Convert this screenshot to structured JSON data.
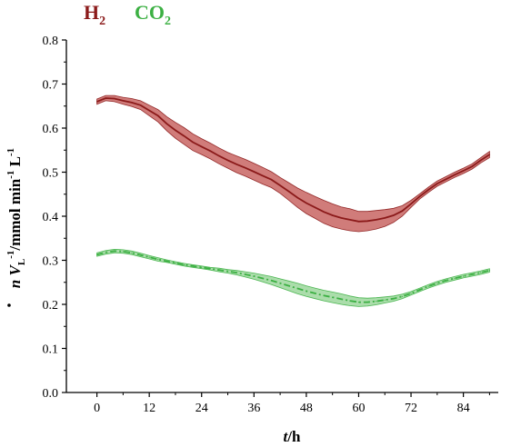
{
  "chart_data": {
    "type": "line",
    "xlabel": {
      "italic": "t",
      "rest": "/h"
    },
    "ylabel": {
      "n": "n",
      "V": "V",
      "sub": "L",
      "sup1": "-1",
      "unit": "/mmol min",
      "sup2": "-1",
      "L": " L",
      "sup3": "-1"
    },
    "xlim": [
      -7,
      92
    ],
    "ylim": [
      0,
      0.8
    ],
    "x_ticks": [
      0,
      12,
      24,
      36,
      48,
      60,
      72,
      84
    ],
    "x_tick_labels": [
      "0",
      "12",
      "24",
      "36",
      "48",
      "60",
      "72",
      "84"
    ],
    "y_ticks": [
      0,
      0.1,
      0.2,
      0.3,
      0.4,
      0.5,
      0.6,
      0.7,
      0.8
    ],
    "y_tick_labels": [
      "0.0",
      "0.1",
      "0.2",
      "0.3",
      "0.4",
      "0.5",
      "0.6",
      "0.7",
      "0.8"
    ],
    "legend": [
      {
        "name": "H",
        "sub": "2",
        "color": "#8b1a1a"
      },
      {
        "name": "CO",
        "sub": "2",
        "color": "#3cb043"
      }
    ],
    "series": [
      {
        "name": "H2",
        "color": "#8b1a1a",
        "band_color": "#c0504d",
        "style": "solid",
        "x": [
          0,
          2,
          4,
          6,
          8,
          10,
          12,
          14,
          16,
          18,
          20,
          22,
          24,
          26,
          28,
          30,
          32,
          34,
          36,
          38,
          40,
          42,
          44,
          46,
          48,
          50,
          52,
          54,
          56,
          58,
          60,
          62,
          64,
          66,
          68,
          70,
          72,
          74,
          76,
          78,
          80,
          82,
          84,
          86,
          88,
          90
        ],
        "y": [
          0.66,
          0.668,
          0.667,
          0.662,
          0.658,
          0.652,
          0.64,
          0.628,
          0.61,
          0.595,
          0.582,
          0.568,
          0.558,
          0.548,
          0.537,
          0.527,
          0.518,
          0.51,
          0.501,
          0.492,
          0.483,
          0.47,
          0.456,
          0.442,
          0.43,
          0.42,
          0.41,
          0.402,
          0.396,
          0.392,
          0.388,
          0.389,
          0.392,
          0.396,
          0.402,
          0.412,
          0.428,
          0.445,
          0.46,
          0.474,
          0.484,
          0.494,
          0.503,
          0.513,
          0.527,
          0.54
        ],
        "err": [
          0.006,
          0.006,
          0.007,
          0.008,
          0.009,
          0.01,
          0.012,
          0.014,
          0.016,
          0.018,
          0.019,
          0.019,
          0.018,
          0.018,
          0.018,
          0.018,
          0.019,
          0.019,
          0.019,
          0.019,
          0.018,
          0.018,
          0.02,
          0.022,
          0.024,
          0.025,
          0.026,
          0.026,
          0.025,
          0.025,
          0.023,
          0.022,
          0.021,
          0.019,
          0.016,
          0.012,
          0.008,
          0.006,
          0.006,
          0.006,
          0.006,
          0.006,
          0.006,
          0.006,
          0.006,
          0.007
        ]
      },
      {
        "name": "CO2",
        "color": "#3cb043",
        "band_color": "#8fd18f",
        "style": "dashdot",
        "x": [
          0,
          2,
          4,
          6,
          8,
          10,
          12,
          14,
          16,
          18,
          20,
          22,
          24,
          26,
          28,
          30,
          32,
          34,
          36,
          38,
          40,
          42,
          44,
          46,
          48,
          50,
          52,
          54,
          56,
          58,
          60,
          62,
          64,
          66,
          68,
          70,
          72,
          74,
          76,
          78,
          80,
          82,
          84,
          86,
          88,
          90
        ],
        "y": [
          0.313,
          0.318,
          0.321,
          0.32,
          0.317,
          0.312,
          0.307,
          0.302,
          0.298,
          0.294,
          0.29,
          0.287,
          0.284,
          0.281,
          0.278,
          0.275,
          0.272,
          0.268,
          0.264,
          0.259,
          0.254,
          0.248,
          0.242,
          0.236,
          0.23,
          0.225,
          0.22,
          0.216,
          0.212,
          0.208,
          0.205,
          0.205,
          0.207,
          0.21,
          0.213,
          0.218,
          0.225,
          0.233,
          0.241,
          0.248,
          0.254,
          0.259,
          0.264,
          0.268,
          0.272,
          0.277
        ],
        "err": [
          0.004,
          0.004,
          0.004,
          0.004,
          0.004,
          0.004,
          0.004,
          0.004,
          0.003,
          0.003,
          0.003,
          0.003,
          0.003,
          0.003,
          0.004,
          0.004,
          0.005,
          0.006,
          0.007,
          0.008,
          0.009,
          0.01,
          0.011,
          0.012,
          0.012,
          0.012,
          0.012,
          0.012,
          0.012,
          0.011,
          0.01,
          0.009,
          0.008,
          0.007,
          0.006,
          0.005,
          0.004,
          0.004,
          0.004,
          0.004,
          0.004,
          0.004,
          0.004,
          0.004,
          0.004,
          0.004
        ]
      }
    ]
  }
}
